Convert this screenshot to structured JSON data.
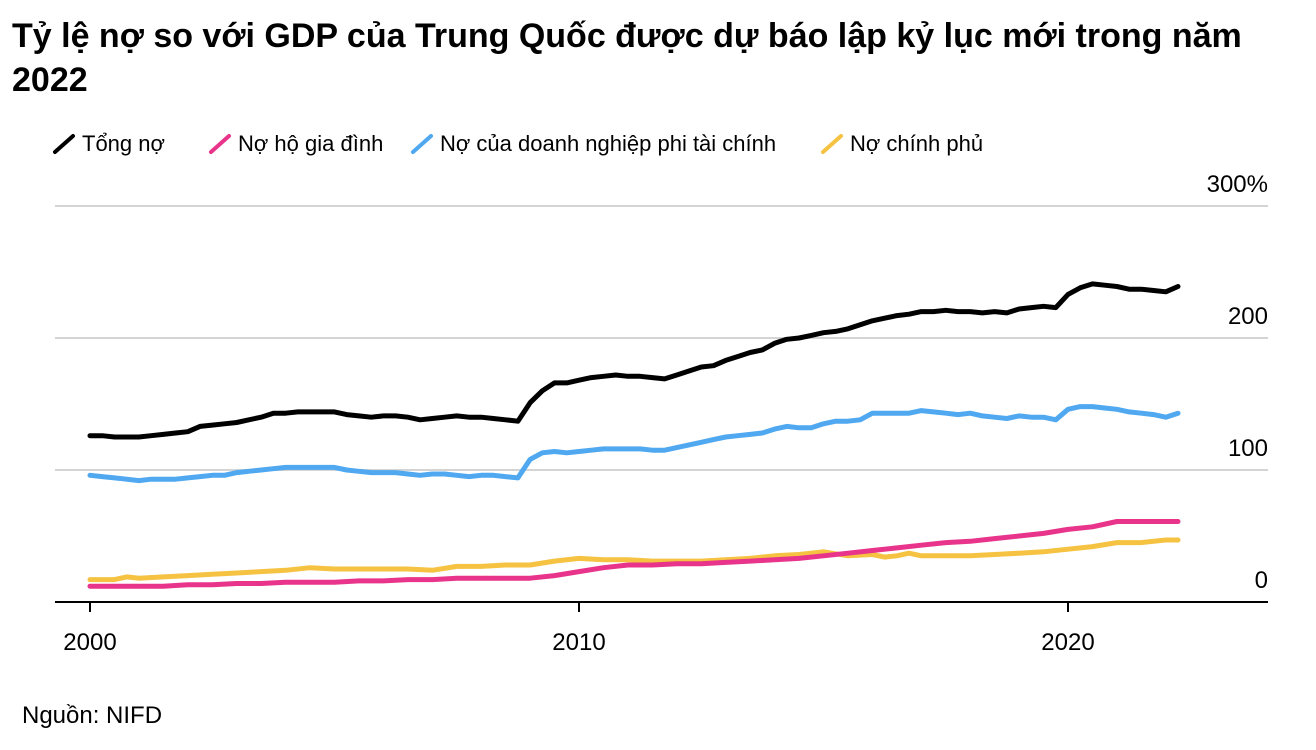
{
  "chart_data": {
    "type": "line",
    "title": "Tỷ lệ nợ so với GDP của Trung Quốc được dự báo lập kỷ lục mới trong năm 2022",
    "xlabel": "",
    "ylabel": "",
    "xlim": [
      2000,
      2024
    ],
    "ylim": [
      0,
      300
    ],
    "x_ticks": [
      "2000",
      "2010",
      "2020"
    ],
    "y_ticks": [
      "0",
      "100",
      "200",
      "300%"
    ],
    "grid": true,
    "legend_position": "top-left",
    "series": [
      {
        "name": "Tổng nợ",
        "color": "#000000",
        "x": [
          2000,
          2000.25,
          2000.5,
          2000.75,
          2001,
          2001.25,
          2001.5,
          2001.75,
          2002,
          2002.25,
          2002.5,
          2002.75,
          2003,
          2003.25,
          2003.5,
          2003.75,
          2004,
          2004.25,
          2004.5,
          2004.75,
          2005,
          2005.25,
          2005.5,
          2005.75,
          2006,
          2006.25,
          2006.5,
          2006.75,
          2007,
          2007.25,
          2007.5,
          2007.75,
          2008,
          2008.25,
          2008.5,
          2008.75,
          2009,
          2009.25,
          2009.5,
          2009.75,
          2010,
          2010.25,
          2010.5,
          2010.75,
          2011,
          2011.25,
          2011.5,
          2011.75,
          2012,
          2012.25,
          2012.5,
          2012.75,
          2013,
          2013.25,
          2013.5,
          2013.75,
          2014,
          2014.25,
          2014.5,
          2014.75,
          2015,
          2015.25,
          2015.5,
          2015.75,
          2016,
          2016.25,
          2016.5,
          2016.75,
          2017,
          2017.25,
          2017.5,
          2017.75,
          2018,
          2018.25,
          2018.5,
          2018.75,
          2019,
          2019.25,
          2019.5,
          2019.75,
          2020,
          2020.25,
          2020.5,
          2020.75,
          2021,
          2021.25,
          2021.5,
          2021.75,
          2022,
          2022.25
        ],
        "values": [
          126,
          126,
          125,
          125,
          125,
          126,
          127,
          128,
          129,
          133,
          134,
          135,
          136,
          138,
          140,
          143,
          143,
          144,
          144,
          144,
          144,
          142,
          141,
          140,
          141,
          141,
          140,
          138,
          139,
          140,
          141,
          140,
          140,
          139,
          138,
          137,
          151,
          160,
          166,
          166,
          168,
          170,
          171,
          172,
          171,
          171,
          170,
          169,
          172,
          175,
          178,
          179,
          183,
          186,
          189,
          191,
          196,
          199,
          200,
          202,
          204,
          205,
          207,
          210,
          213,
          215,
          217,
          218,
          220,
          220,
          221,
          220,
          220,
          219,
          220,
          219,
          222,
          223,
          224,
          223,
          233,
          238,
          241,
          240,
          239,
          237,
          237,
          236,
          235,
          239
        ]
      },
      {
        "name": "Nợ hộ gia đình",
        "color": "#e8348a",
        "x": [
          2000,
          2001,
          2001.5,
          2002,
          2002.5,
          2003,
          2003.5,
          2004,
          2004.5,
          2005,
          2005.5,
          2006,
          2006.5,
          2007,
          2007.5,
          2008,
          2008.5,
          2009,
          2009.5,
          2010,
          2010.5,
          2011,
          2011.5,
          2012,
          2012.5,
          2013,
          2013.5,
          2014,
          2014.5,
          2015,
          2015.5,
          2016,
          2016.5,
          2017,
          2017.5,
          2018,
          2018.5,
          2019,
          2019.5,
          2020,
          2020.5,
          2021,
          2021.5,
          2022,
          2022.25
        ],
        "values": [
          12,
          12,
          12,
          13,
          13,
          14,
          14,
          15,
          15,
          15,
          16,
          16,
          17,
          17,
          18,
          18,
          18,
          18,
          20,
          23,
          26,
          28,
          28,
          29,
          29,
          30,
          31,
          32,
          33,
          35,
          37,
          39,
          41,
          43,
          45,
          46,
          48,
          50,
          52,
          55,
          57,
          61,
          61,
          61,
          61
        ]
      },
      {
        "name": "Nợ của doanh nghiệp phi tài chính",
        "color": "#4fa8f0",
        "x": [
          2000,
          2000.25,
          2000.5,
          2000.75,
          2001,
          2001.25,
          2001.5,
          2001.75,
          2002,
          2002.25,
          2002.5,
          2002.75,
          2003,
          2003.25,
          2003.5,
          2003.75,
          2004,
          2004.25,
          2004.5,
          2004.75,
          2005,
          2005.25,
          2005.5,
          2005.75,
          2006,
          2006.25,
          2006.5,
          2006.75,
          2007,
          2007.25,
          2007.5,
          2007.75,
          2008,
          2008.25,
          2008.5,
          2008.75,
          2009,
          2009.25,
          2009.5,
          2009.75,
          2010,
          2010.25,
          2010.5,
          2010.75,
          2011,
          2011.25,
          2011.5,
          2011.75,
          2012,
          2012.25,
          2012.5,
          2012.75,
          2013,
          2013.25,
          2013.5,
          2013.75,
          2014,
          2014.25,
          2014.5,
          2014.75,
          2015,
          2015.25,
          2015.5,
          2015.75,
          2016,
          2016.25,
          2016.5,
          2016.75,
          2017,
          2017.25,
          2017.5,
          2017.75,
          2018,
          2018.25,
          2018.5,
          2018.75,
          2019,
          2019.25,
          2019.5,
          2019.75,
          2020,
          2020.25,
          2020.5,
          2020.75,
          2021,
          2021.25,
          2021.5,
          2021.75,
          2022,
          2022.25
        ],
        "values": [
          96,
          95,
          94,
          93,
          92,
          93,
          93,
          93,
          94,
          95,
          96,
          96,
          98,
          99,
          100,
          101,
          102,
          102,
          102,
          102,
          102,
          100,
          99,
          98,
          98,
          98,
          97,
          96,
          97,
          97,
          96,
          95,
          96,
          96,
          95,
          94,
          108,
          113,
          114,
          113,
          114,
          115,
          116,
          116,
          116,
          116,
          115,
          115,
          117,
          119,
          121,
          123,
          125,
          126,
          127,
          128,
          131,
          133,
          132,
          132,
          135,
          137,
          137,
          138,
          143,
          143,
          143,
          143,
          145,
          144,
          143,
          142,
          143,
          141,
          140,
          139,
          141,
          140,
          140,
          138,
          146,
          148,
          148,
          147,
          146,
          144,
          143,
          142,
          140,
          143
        ]
      },
      {
        "name": "Nợ chính phủ",
        "color": "#f5c242",
        "x": [
          2000,
          2000.5,
          2000.75,
          2001,
          2001.5,
          2002,
          2002.5,
          2003,
          2003.5,
          2004,
          2004.5,
          2005,
          2005.5,
          2006,
          2006.5,
          2007,
          2007.5,
          2008,
          2008.5,
          2009,
          2009.5,
          2010,
          2010.5,
          2011,
          2011.5,
          2012,
          2012.5,
          2013,
          2013.5,
          2014,
          2014.5,
          2015,
          2015.5,
          2016,
          2016.25,
          2016.5,
          2016.75,
          2017,
          2017.5,
          2018,
          2018.5,
          2019,
          2019.5,
          2020,
          2020.5,
          2021,
          2021.5,
          2022,
          2022.25
        ],
        "values": [
          17,
          17,
          19,
          18,
          19,
          20,
          21,
          22,
          23,
          24,
          26,
          25,
          25,
          25,
          25,
          24,
          27,
          27,
          28,
          28,
          31,
          33,
          32,
          32,
          31,
          31,
          31,
          32,
          33,
          35,
          36,
          38,
          35,
          36,
          34,
          35,
          37,
          35,
          35,
          35,
          36,
          37,
          38,
          40,
          42,
          45,
          45,
          47,
          47
        ]
      }
    ]
  },
  "source": "Nguồn: NIFD"
}
